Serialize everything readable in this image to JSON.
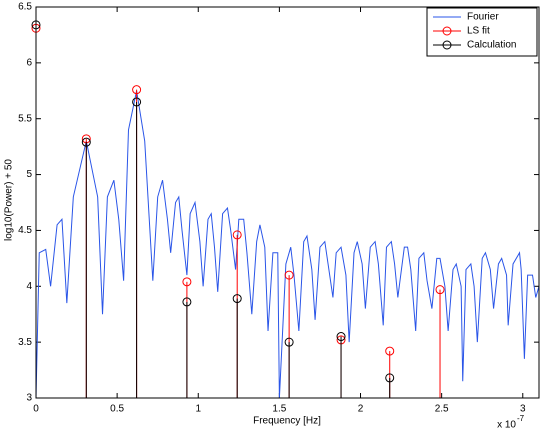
{
  "chart_data": {
    "type": "line",
    "xlabel": "Frequency [Hz]",
    "ylabel": "log10(Power) + 50",
    "x_scale_label": {
      "base": "x 10",
      "exponent": "-7"
    },
    "xlim": [
      0,
      3.1
    ],
    "ylim": [
      3,
      6.5
    ],
    "xticks": [
      0,
      0.5,
      1,
      1.5,
      2,
      2.5,
      3
    ],
    "yticks": [
      3,
      3.5,
      4,
      4.5,
      5,
      5.5,
      6,
      6.5
    ],
    "legend": "upper right",
    "series": [
      {
        "name": "Fourier",
        "style": "line",
        "color": "#2a55e8",
        "x": [
          0,
          0.02,
          0.06,
          0.09,
          0.13,
          0.16,
          0.19,
          0.23,
          0.31,
          0.38,
          0.41,
          0.44,
          0.48,
          0.51,
          0.54,
          0.57,
          0.62,
          0.67,
          0.72,
          0.75,
          0.78,
          0.81,
          0.83,
          0.86,
          0.88,
          0.9,
          0.93,
          0.95,
          0.98,
          1.01,
          1.03,
          1.06,
          1.08,
          1.1,
          1.12,
          1.15,
          1.18,
          1.2,
          1.23,
          1.25,
          1.28,
          1.3,
          1.33,
          1.36,
          1.38,
          1.41,
          1.43,
          1.46,
          1.49,
          1.5,
          1.54,
          1.57,
          1.59,
          1.62,
          1.65,
          1.67,
          1.7,
          1.72,
          1.75,
          1.78,
          1.8,
          1.83,
          1.85,
          1.88,
          1.91,
          1.93,
          1.96,
          1.98,
          2.01,
          2.03,
          2.06,
          2.09,
          2.11,
          2.14,
          2.16,
          2.19,
          2.21,
          2.23,
          2.27,
          2.29,
          2.31,
          2.34,
          2.36,
          2.39,
          2.41,
          2.44,
          2.47,
          2.49,
          2.52,
          2.54,
          2.57,
          2.59,
          2.62,
          2.63,
          2.65,
          2.68,
          2.7,
          2.72,
          2.75,
          2.77,
          2.8,
          2.82,
          2.85,
          2.87,
          2.9,
          2.91,
          2.94,
          2.98,
          2.99,
          3.01,
          3.03,
          3.06,
          3.08,
          3.1
        ],
        "values": [
          3.0,
          4.3,
          4.33,
          4.0,
          4.55,
          4.6,
          3.85,
          4.8,
          5.3,
          4.8,
          3.75,
          4.8,
          4.95,
          4.6,
          4.05,
          5.4,
          5.75,
          5.3,
          4.05,
          4.8,
          4.95,
          4.6,
          4.3,
          4.75,
          4.8,
          4.5,
          4.1,
          4.65,
          4.75,
          4.4,
          4.0,
          4.6,
          4.65,
          4.35,
          3.95,
          4.65,
          4.7,
          4.5,
          4.15,
          4.6,
          4.6,
          4.3,
          3.75,
          4.4,
          4.55,
          4.35,
          3.6,
          4.3,
          4.3,
          3.0,
          4.2,
          4.35,
          4.1,
          3.6,
          4.4,
          4.45,
          4.15,
          3.7,
          4.35,
          4.4,
          4.2,
          3.9,
          4.3,
          4.35,
          4.1,
          3.5,
          4.3,
          4.4,
          4.2,
          3.8,
          4.35,
          4.4,
          4.2,
          3.65,
          4.35,
          4.4,
          4.2,
          3.9,
          4.35,
          4.35,
          4.15,
          3.6,
          4.25,
          4.3,
          4.05,
          3.8,
          4.25,
          4.25,
          4.0,
          3.6,
          4.15,
          4.2,
          4.0,
          3.15,
          4.15,
          4.2,
          4.0,
          3.5,
          4.25,
          4.3,
          4.15,
          3.8,
          4.2,
          4.25,
          4.1,
          3.65,
          4.2,
          4.3,
          4.15,
          3.35,
          4.1,
          4.1,
          3.9,
          4.0
        ]
      },
      {
        "name": "LS fit",
        "style": "stem",
        "color": "#ff0000",
        "x": [
          0,
          0.31,
          0.62,
          0.93,
          1.24,
          1.56,
          1.88,
          2.18,
          2.49
        ],
        "values": [
          6.31,
          5.32,
          5.76,
          4.04,
          4.46,
          4.1,
          3.52,
          3.42,
          3.97
        ]
      },
      {
        "name": "Calculation",
        "style": "stem",
        "color": "#000000",
        "x": [
          0,
          0.31,
          0.62,
          0.93,
          1.24,
          1.56,
          1.88,
          2.18
        ],
        "values": [
          6.34,
          5.29,
          5.65,
          3.86,
          3.89,
          3.5,
          3.55,
          3.18
        ]
      }
    ]
  }
}
